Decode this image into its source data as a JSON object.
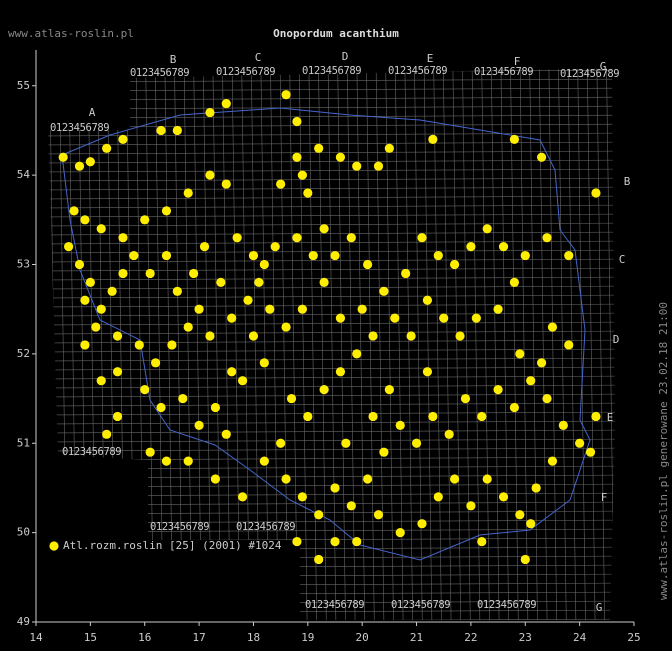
{
  "chart_data": {
    "type": "scatter",
    "title": "Onopordum acanthium",
    "site": "www.atlas-roslin.pl",
    "side_note": "www.atlas-roslin.pl generowane 23.02.18 21:00",
    "grid_letters_top": [
      "A",
      "B",
      "C",
      "D",
      "E",
      "F",
      "G"
    ],
    "grid_letters_right": [
      "B",
      "C",
      "D",
      "E",
      "F",
      "G"
    ],
    "grid_digits": "0123456789",
    "xlim": [
      14,
      25
    ],
    "ylim": [
      49,
      55.4
    ],
    "xticks": [
      14,
      15,
      16,
      17,
      18,
      19,
      20,
      21,
      22,
      23,
      24,
      25
    ],
    "yticks": [
      49,
      50,
      51,
      52,
      53,
      54,
      55
    ],
    "x": [
      14.5,
      14.8,
      15,
      15.3,
      15.6,
      16.3,
      16.6,
      17.2,
      17.5,
      18.6,
      18.8,
      19.6,
      19.9,
      20.3,
      20.5,
      21.3,
      22.8,
      23.3,
      24.3,
      14.7,
      14.9,
      15.2,
      15.6,
      16,
      16.4,
      16.8,
      17.2,
      17.5,
      18.5,
      19,
      18.8,
      19.2,
      18.9,
      14.6,
      14.8,
      15,
      14.9,
      15.2,
      15.4,
      15.6,
      15.8,
      16.1,
      16.4,
      16.6,
      16.9,
      17.1,
      17.4,
      17.7,
      18,
      18.2,
      18.4,
      18.1,
      17.9,
      18.3,
      17.6,
      17.2,
      17,
      16.8,
      16.5,
      16.2,
      15.9,
      15.5,
      15.1,
      14.9,
      15.5,
      15.5,
      15.3,
      16,
      16.3,
      16.7,
      17,
      17.3,
      17.5,
      17.8,
      18.2,
      18.6,
      18.9,
      19.3,
      19.5,
      19.8,
      19.3,
      19.1,
      18.8,
      20.1,
      20.4,
      20.8,
      21.1,
      21.4,
      21.7,
      22,
      22.3,
      22.6,
      23,
      23.4,
      23.8,
      22.8,
      22.5,
      22.1,
      21.8,
      21.5,
      21.2,
      20.9,
      20.6,
      20.2,
      19.9,
      19.6,
      19.3,
      19,
      18.7,
      18.5,
      18.2,
      18.6,
      18.9,
      19.2,
      19.5,
      19.8,
      20.1,
      20.4,
      20.7,
      21,
      21.3,
      21.6,
      21.9,
      22.2,
      22.5,
      22.8,
      23.1,
      23.4,
      23.7,
      24,
      24.2,
      23.5,
      23.2,
      22.9,
      22.6,
      22.3,
      22,
      21.7,
      21.4,
      21.1,
      20.7,
      20.3,
      19.9,
      19.5,
      19.2,
      18.8,
      17.8,
      17.3,
      16.8,
      16.4,
      23,
      23.1,
      22.2,
      24.3,
      23.8,
      23.5,
      22.9,
      23.3,
      20.5,
      20.2,
      19.7,
      21.2,
      20,
      19.6,
      18,
      16.1,
      17.6,
      15.2
    ],
    "legend_position": "lower left",
    "series": [
      {
        "name": "Atl.rozm.roslin [25] (2001) #1024",
        "color": "#ffee00",
        "values": [
          54.2,
          54.1,
          54.15,
          54.3,
          54.4,
          54.5,
          54.5,
          54.7,
          54.8,
          54.9,
          54.6,
          54.2,
          54.1,
          54.1,
          54.3,
          54.4,
          54.4,
          54.2,
          53.8,
          53.6,
          53.5,
          53.4,
          53.3,
          53.5,
          53.6,
          53.8,
          54,
          53.9,
          53.9,
          53.8,
          54.2,
          54.3,
          54,
          53.2,
          53,
          52.8,
          52.6,
          52.5,
          52.7,
          52.9,
          53.1,
          52.9,
          53.1,
          52.7,
          52.9,
          53.2,
          52.8,
          53.3,
          53.1,
          53,
          53.2,
          52.8,
          52.6,
          52.5,
          52.4,
          52.2,
          52.5,
          52.3,
          52.1,
          51.9,
          52.1,
          52.2,
          52.3,
          52.1,
          51.8,
          51.3,
          51.1,
          51.6,
          51.4,
          51.5,
          51.2,
          51.4,
          51.1,
          51.7,
          51.9,
          52.3,
          52.5,
          52.8,
          53.1,
          53.3,
          53.4,
          53.1,
          53.3,
          53,
          52.7,
          52.9,
          53.3,
          53.1,
          53,
          53.2,
          53.4,
          53.2,
          53.1,
          53.3,
          53.1,
          52.8,
          52.5,
          52.4,
          52.2,
          52.4,
          52.6,
          52.2,
          52.4,
          52.2,
          52,
          51.8,
          51.6,
          51.3,
          51.5,
          51,
          50.8,
          50.6,
          50.4,
          50.2,
          50.5,
          50.3,
          50.6,
          50.9,
          51.2,
          51,
          51.3,
          51.1,
          51.5,
          51.3,
          51.6,
          51.4,
          51.7,
          51.5,
          51.2,
          51,
          50.9,
          50.8,
          50.5,
          50.2,
          50.4,
          50.6,
          50.3,
          50.6,
          50.4,
          50.1,
          50,
          50.2,
          49.9,
          49.9,
          49.7,
          49.9,
          50.4,
          50.6,
          50.8,
          50.8,
          49.7,
          50.1,
          49.9,
          51.3,
          52.1,
          52.3,
          52,
          51.9,
          51.6,
          51.3,
          51,
          51.8,
          52.5,
          52.4,
          52.2,
          50.9,
          51.8,
          51.7
        ]
      }
    ]
  }
}
